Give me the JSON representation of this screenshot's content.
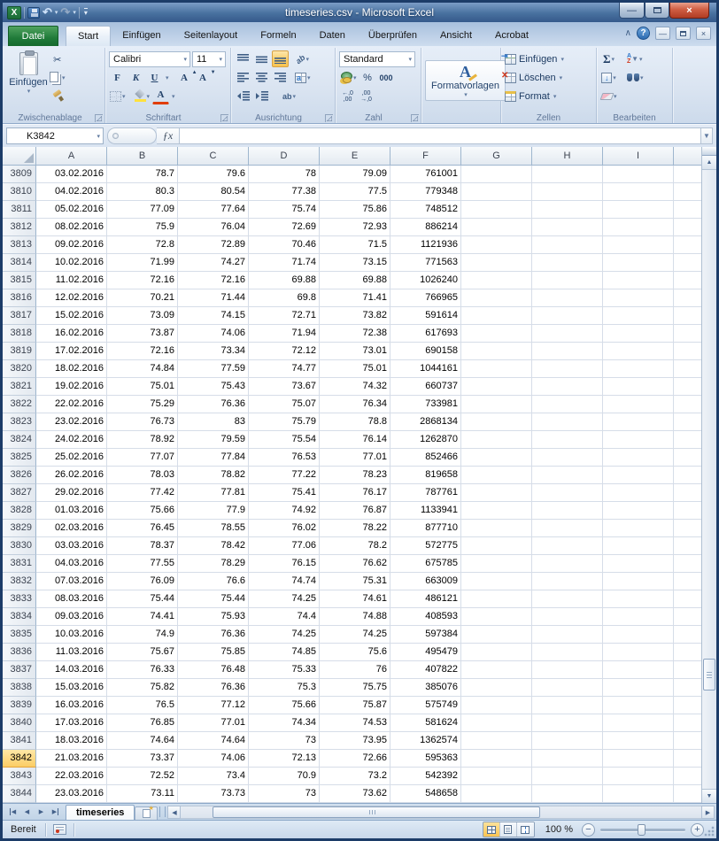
{
  "window": {
    "title": "timeseries.csv - Microsoft Excel"
  },
  "icons": {
    "excel_logo": "X",
    "undo": "↶",
    "redo": "↷",
    "dropdown": "▾",
    "qat_more": "▾",
    "win_min": "—",
    "win_close": "×",
    "ribbon_collapse": "∧",
    "help": "?",
    "doc_min": "—",
    "doc_close": "×",
    "launcher": "◿",
    "name_dropdown": "▼",
    "fx": "ƒx",
    "fbar_expand": "▼",
    "cut": "✂",
    "bold": "F",
    "italic": "K",
    "underline": "U",
    "grow_font": "A",
    "shrink_font": "A",
    "font_color": "A",
    "percent": "%",
    "thousands": "000",
    "dec_add_top": "←,0",
    "dec_add_bottom": ",00",
    "dec_rem_top": ",00",
    "dec_rem_bottom": "→,0",
    "sigma": "Σ",
    "sort_a": "A",
    "sort_z": "Z",
    "funnel": "▼",
    "fill_down": "↓",
    "up_arrow": "▲",
    "down_arrow": "▼",
    "left_arrow": "◀",
    "right_arrow": "▶",
    "rotate_ab": "ab",
    "merge_a": "a"
  },
  "ribbon": {
    "file_tab": "Datei",
    "tabs": [
      "Start",
      "Einfügen",
      "Seitenlayout",
      "Formeln",
      "Daten",
      "Überprüfen",
      "Ansicht",
      "Acrobat"
    ],
    "active_tab": "Start",
    "clipboard": {
      "label": "Zwischenablage",
      "paste": "Einfügen"
    },
    "font": {
      "label": "Schriftart",
      "font_name": "Calibri",
      "font_size": "11"
    },
    "alignment": {
      "label": "Ausrichtung"
    },
    "number": {
      "label": "Zahl",
      "format": "Standard"
    },
    "styles": {
      "button": "Formatvorlagen"
    },
    "cells": {
      "label": "Zellen",
      "insert": "Einfügen",
      "delete": "Löschen",
      "format": "Format"
    },
    "editing": {
      "label": "Bearbeiten"
    }
  },
  "formula_bar": {
    "name_box": "K3842",
    "value": ""
  },
  "grid": {
    "columns": [
      "A",
      "B",
      "C",
      "D",
      "E",
      "F",
      "G",
      "H",
      "I"
    ],
    "active_row": "3842",
    "rows": [
      [
        "3809",
        "03.02.2016",
        "78.7",
        "79.6",
        "78",
        "79.09",
        "761001"
      ],
      [
        "3810",
        "04.02.2016",
        "80.3",
        "80.54",
        "77.38",
        "77.5",
        "779348"
      ],
      [
        "3811",
        "05.02.2016",
        "77.09",
        "77.64",
        "75.74",
        "75.86",
        "748512"
      ],
      [
        "3812",
        "08.02.2016",
        "75.9",
        "76.04",
        "72.69",
        "72.93",
        "886214"
      ],
      [
        "3813",
        "09.02.2016",
        "72.8",
        "72.89",
        "70.46",
        "71.5",
        "1121936"
      ],
      [
        "3814",
        "10.02.2016",
        "71.99",
        "74.27",
        "71.74",
        "73.15",
        "771563"
      ],
      [
        "3815",
        "11.02.2016",
        "72.16",
        "72.16",
        "69.88",
        "69.88",
        "1026240"
      ],
      [
        "3816",
        "12.02.2016",
        "70.21",
        "71.44",
        "69.8",
        "71.41",
        "766965"
      ],
      [
        "3817",
        "15.02.2016",
        "73.09",
        "74.15",
        "72.71",
        "73.82",
        "591614"
      ],
      [
        "3818",
        "16.02.2016",
        "73.87",
        "74.06",
        "71.94",
        "72.38",
        "617693"
      ],
      [
        "3819",
        "17.02.2016",
        "72.16",
        "73.34",
        "72.12",
        "73.01",
        "690158"
      ],
      [
        "3820",
        "18.02.2016",
        "74.84",
        "77.59",
        "74.77",
        "75.01",
        "1044161"
      ],
      [
        "3821",
        "19.02.2016",
        "75.01",
        "75.43",
        "73.67",
        "74.32",
        "660737"
      ],
      [
        "3822",
        "22.02.2016",
        "75.29",
        "76.36",
        "75.07",
        "76.34",
        "733981"
      ],
      [
        "3823",
        "23.02.2016",
        "76.73",
        "83",
        "75.79",
        "78.8",
        "2868134"
      ],
      [
        "3824",
        "24.02.2016",
        "78.92",
        "79.59",
        "75.54",
        "76.14",
        "1262870"
      ],
      [
        "3825",
        "25.02.2016",
        "77.07",
        "77.84",
        "76.53",
        "77.01",
        "852466"
      ],
      [
        "3826",
        "26.02.2016",
        "78.03",
        "78.82",
        "77.22",
        "78.23",
        "819658"
      ],
      [
        "3827",
        "29.02.2016",
        "77.42",
        "77.81",
        "75.41",
        "76.17",
        "787761"
      ],
      [
        "3828",
        "01.03.2016",
        "75.66",
        "77.9",
        "74.92",
        "76.87",
        "1133941"
      ],
      [
        "3829",
        "02.03.2016",
        "76.45",
        "78.55",
        "76.02",
        "78.22",
        "877710"
      ],
      [
        "3830",
        "03.03.2016",
        "78.37",
        "78.42",
        "77.06",
        "78.2",
        "572775"
      ],
      [
        "3831",
        "04.03.2016",
        "77.55",
        "78.29",
        "76.15",
        "76.62",
        "675785"
      ],
      [
        "3832",
        "07.03.2016",
        "76.09",
        "76.6",
        "74.74",
        "75.31",
        "663009"
      ],
      [
        "3833",
        "08.03.2016",
        "75.44",
        "75.44",
        "74.25",
        "74.61",
        "486121"
      ],
      [
        "3834",
        "09.03.2016",
        "74.41",
        "75.93",
        "74.4",
        "74.88",
        "408593"
      ],
      [
        "3835",
        "10.03.2016",
        "74.9",
        "76.36",
        "74.25",
        "74.25",
        "597384"
      ],
      [
        "3836",
        "11.03.2016",
        "75.67",
        "75.85",
        "74.85",
        "75.6",
        "495479"
      ],
      [
        "3837",
        "14.03.2016",
        "76.33",
        "76.48",
        "75.33",
        "76",
        "407822"
      ],
      [
        "3838",
        "15.03.2016",
        "75.82",
        "76.36",
        "75.3",
        "75.75",
        "385076"
      ],
      [
        "3839",
        "16.03.2016",
        "76.5",
        "77.12",
        "75.66",
        "75.87",
        "575749"
      ],
      [
        "3840",
        "17.03.2016",
        "76.85",
        "77.01",
        "74.34",
        "74.53",
        "581624"
      ],
      [
        "3841",
        "18.03.2016",
        "74.64",
        "74.64",
        "73",
        "73.95",
        "1362574"
      ],
      [
        "3842",
        "21.03.2016",
        "73.37",
        "74.06",
        "72.13",
        "72.66",
        "595363"
      ],
      [
        "3843",
        "22.03.2016",
        "72.52",
        "73.4",
        "70.9",
        "73.2",
        "542392"
      ],
      [
        "3844",
        "23.03.2016",
        "73.11",
        "73.73",
        "73",
        "73.62",
        "548658"
      ]
    ]
  },
  "sheet_bar": {
    "tab": "timeseries"
  },
  "status_bar": {
    "ready": "Bereit",
    "zoom": "100 %"
  },
  "colors": {
    "accent_selection": "#fbcd65",
    "file_tab_green": "#1f7a39",
    "frame_blue": "#1c3c68"
  }
}
